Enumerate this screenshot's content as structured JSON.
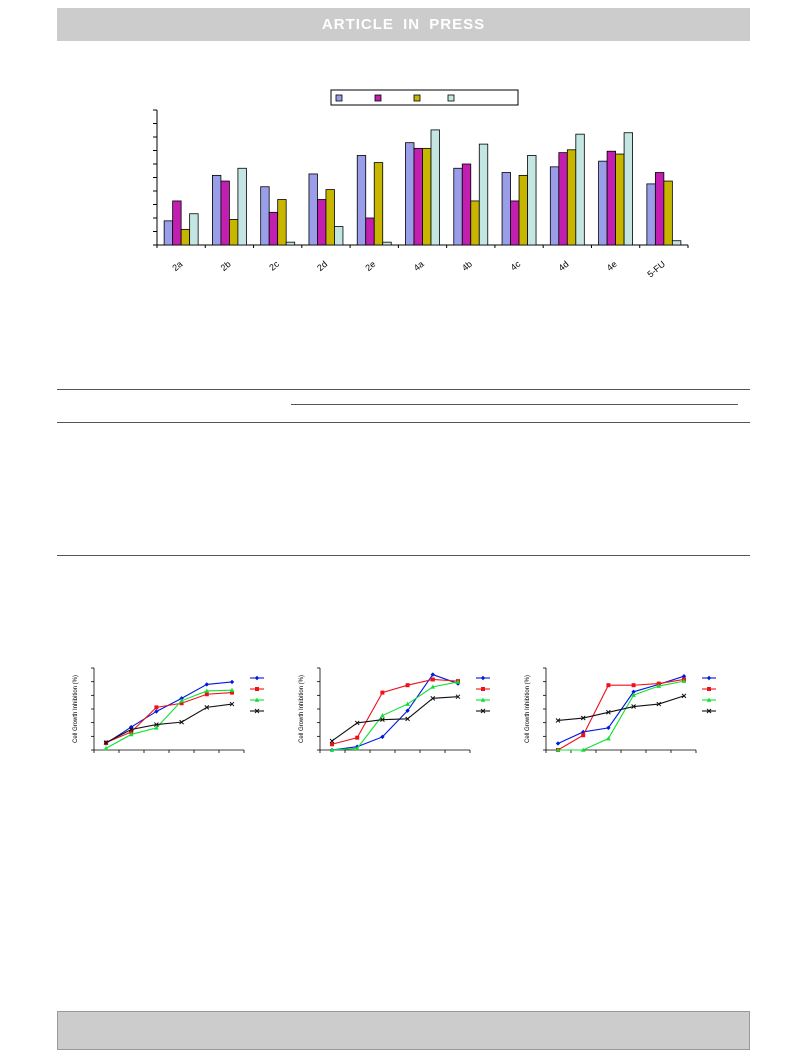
{
  "header": {
    "banner_text": "ARTICLE  IN  PRESS"
  },
  "colors": {
    "series": [
      "#9a9ee8",
      "#c21fb0",
      "#c7b600",
      "#c3e6e2"
    ],
    "line_series": [
      "#0018e0",
      "#f0101a",
      "#10e030",
      "#101010"
    ],
    "banner_bg": "#cccccc"
  },
  "chart_data": [
    {
      "type": "bar",
      "categories": [
        "2a",
        "2b",
        "2c",
        "2d",
        "2e",
        "4a",
        "4b",
        "4c",
        "4d",
        "4e",
        "5-FU"
      ],
      "series": [
        {
          "values": [
            17,
            49,
            41,
            50,
            63,
            72,
            54,
            51,
            55,
            59,
            43
          ]
        },
        {
          "values": [
            31,
            45,
            23,
            32,
            19,
            68,
            57,
            31,
            65,
            66,
            51
          ]
        },
        {
          "values": [
            11,
            18,
            32,
            39,
            58,
            68,
            31,
            49,
            67,
            64,
            45
          ]
        },
        {
          "values": [
            22,
            54,
            2,
            13,
            2,
            81,
            71,
            63,
            78,
            79,
            3
          ]
        }
      ],
      "ylim": [
        0,
        95
      ],
      "legend": "top"
    },
    {
      "type": "line",
      "ylabel": "Cell Growth Inhibition (%)",
      "x": [
        1,
        2,
        3,
        4,
        5,
        6
      ],
      "series": [
        {
          "values": [
            8,
            28,
            47,
            63,
            80,
            83
          ]
        },
        {
          "values": [
            9,
            22,
            52,
            57,
            68,
            70
          ]
        },
        {
          "values": [
            2,
            19,
            27,
            60,
            72,
            73
          ]
        },
        {
          "values": [
            9,
            25,
            31,
            34,
            52,
            56
          ]
        }
      ],
      "ylim": [
        0,
        100
      ],
      "legend": "right"
    },
    {
      "type": "line",
      "ylabel": "Cell Growth Inhibition (%)",
      "x": [
        1,
        2,
        3,
        4,
        5,
        6
      ],
      "series": [
        {
          "values": [
            0,
            4,
            16,
            48,
            92,
            81
          ]
        },
        {
          "values": [
            7,
            15,
            70,
            79,
            86,
            84
          ]
        },
        {
          "values": [
            0,
            2,
            42,
            56,
            77,
            83
          ]
        },
        {
          "values": [
            11,
            33,
            37,
            38,
            63,
            65
          ]
        }
      ],
      "ylim": [
        0,
        100
      ],
      "legend": "right"
    },
    {
      "type": "line",
      "ylabel": "Cell Growth Inhibition (%)",
      "x": [
        1,
        2,
        3,
        4,
        5,
        6
      ],
      "series": [
        {
          "values": [
            8,
            22,
            27,
            71,
            80,
            90
          ]
        },
        {
          "values": [
            0,
            18,
            79,
            79,
            81,
            86
          ]
        },
        {
          "values": [
            0,
            0,
            14,
            67,
            78,
            84
          ]
        },
        {
          "values": [
            36,
            39,
            46,
            53,
            56,
            66
          ]
        }
      ],
      "ylim": [
        0,
        100
      ],
      "legend": "right"
    }
  ]
}
